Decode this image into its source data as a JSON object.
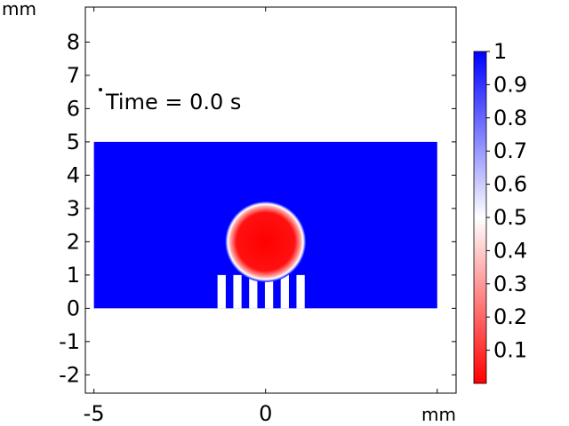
{
  "chart_data": {
    "type": "heatmap",
    "plot_label": "Time = 0.0 s",
    "x_unit": "mm",
    "y_unit": "mm",
    "xlim": [
      -5.25,
      5.55
    ],
    "ylim": [
      -2.55,
      9.05
    ],
    "x_ticks": [
      "-5",
      "0"
    ],
    "x_tick_values": [
      -5,
      0
    ],
    "y_ticks": [
      "-2",
      "-1",
      "0",
      "1",
      "2",
      "3",
      "4",
      "5",
      "6",
      "7",
      "8"
    ],
    "y_tick_values": [
      -2,
      -1,
      0,
      1,
      2,
      3,
      4,
      5,
      6,
      7,
      8
    ],
    "grid": false,
    "field": {
      "domain": {
        "x": [
          -5,
          5
        ],
        "y": [
          0,
          5
        ],
        "value": 1
      },
      "droplet": {
        "center": [
          0,
          2
        ],
        "radius": 1,
        "value": 0
      },
      "posts": {
        "x_start": -1.4,
        "width": 0.24,
        "pitch": 0.46,
        "count": 6,
        "y": [
          0,
          1
        ]
      }
    },
    "colorbar": {
      "range": [
        0,
        1
      ],
      "ticks": [
        "1",
        "0.9",
        "0.8",
        "0.7",
        "0.6",
        "0.5",
        "0.4",
        "0.3",
        "0.2",
        "0.1"
      ],
      "tick_values": [
        1,
        0.9,
        0.8,
        0.7,
        0.6,
        0.5,
        0.4,
        0.3,
        0.2,
        0.1
      ],
      "colors": [
        "#ff0000",
        "#ffffff",
        "#0000ff"
      ]
    }
  }
}
